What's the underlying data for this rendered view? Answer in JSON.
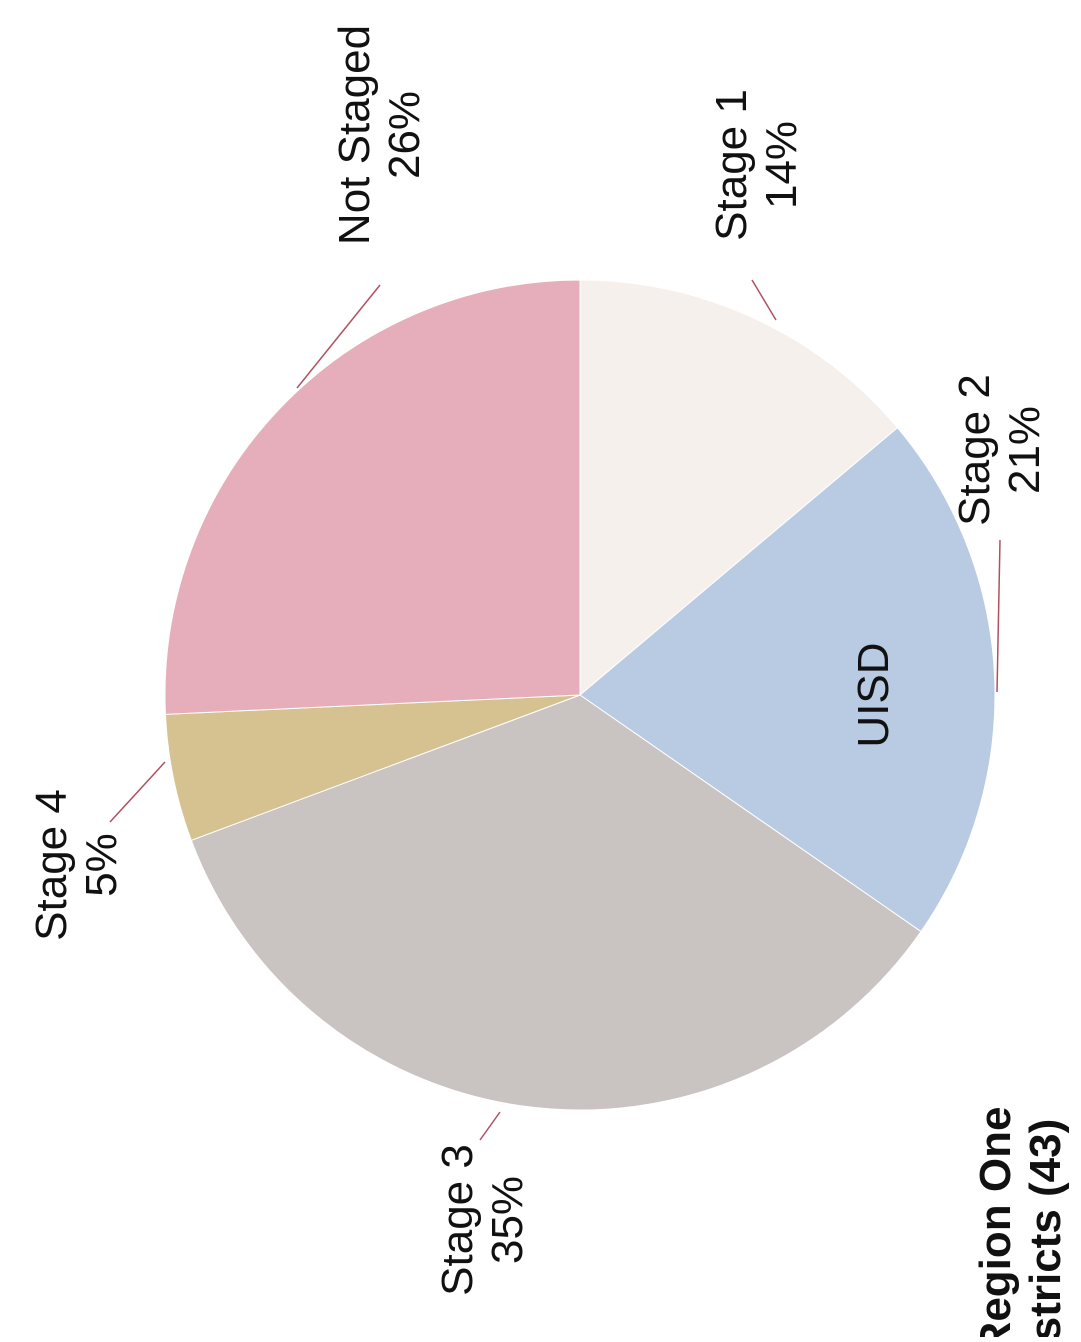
{
  "chart_data": {
    "type": "pie",
    "title": [
      "Region One",
      "stricts (43)"
    ],
    "center_label": "UISD",
    "slices": [
      {
        "label": "Stage 1",
        "value": 14,
        "value_text": "14%",
        "color": "#f5f0ec"
      },
      {
        "label": "Stage 2",
        "value": 21,
        "value_text": "21%",
        "color": "#b8cbe3"
      },
      {
        "label": "Stage 3",
        "value": 35,
        "value_text": "35%",
        "color": "#c9c3c1"
      },
      {
        "label": "Stage 4",
        "value": 5,
        "value_text": "5%",
        "color": "#d6c191"
      },
      {
        "label": "Not Staged",
        "value": 26,
        "value_text": "26%",
        "color": "#e6adba"
      }
    ]
  }
}
